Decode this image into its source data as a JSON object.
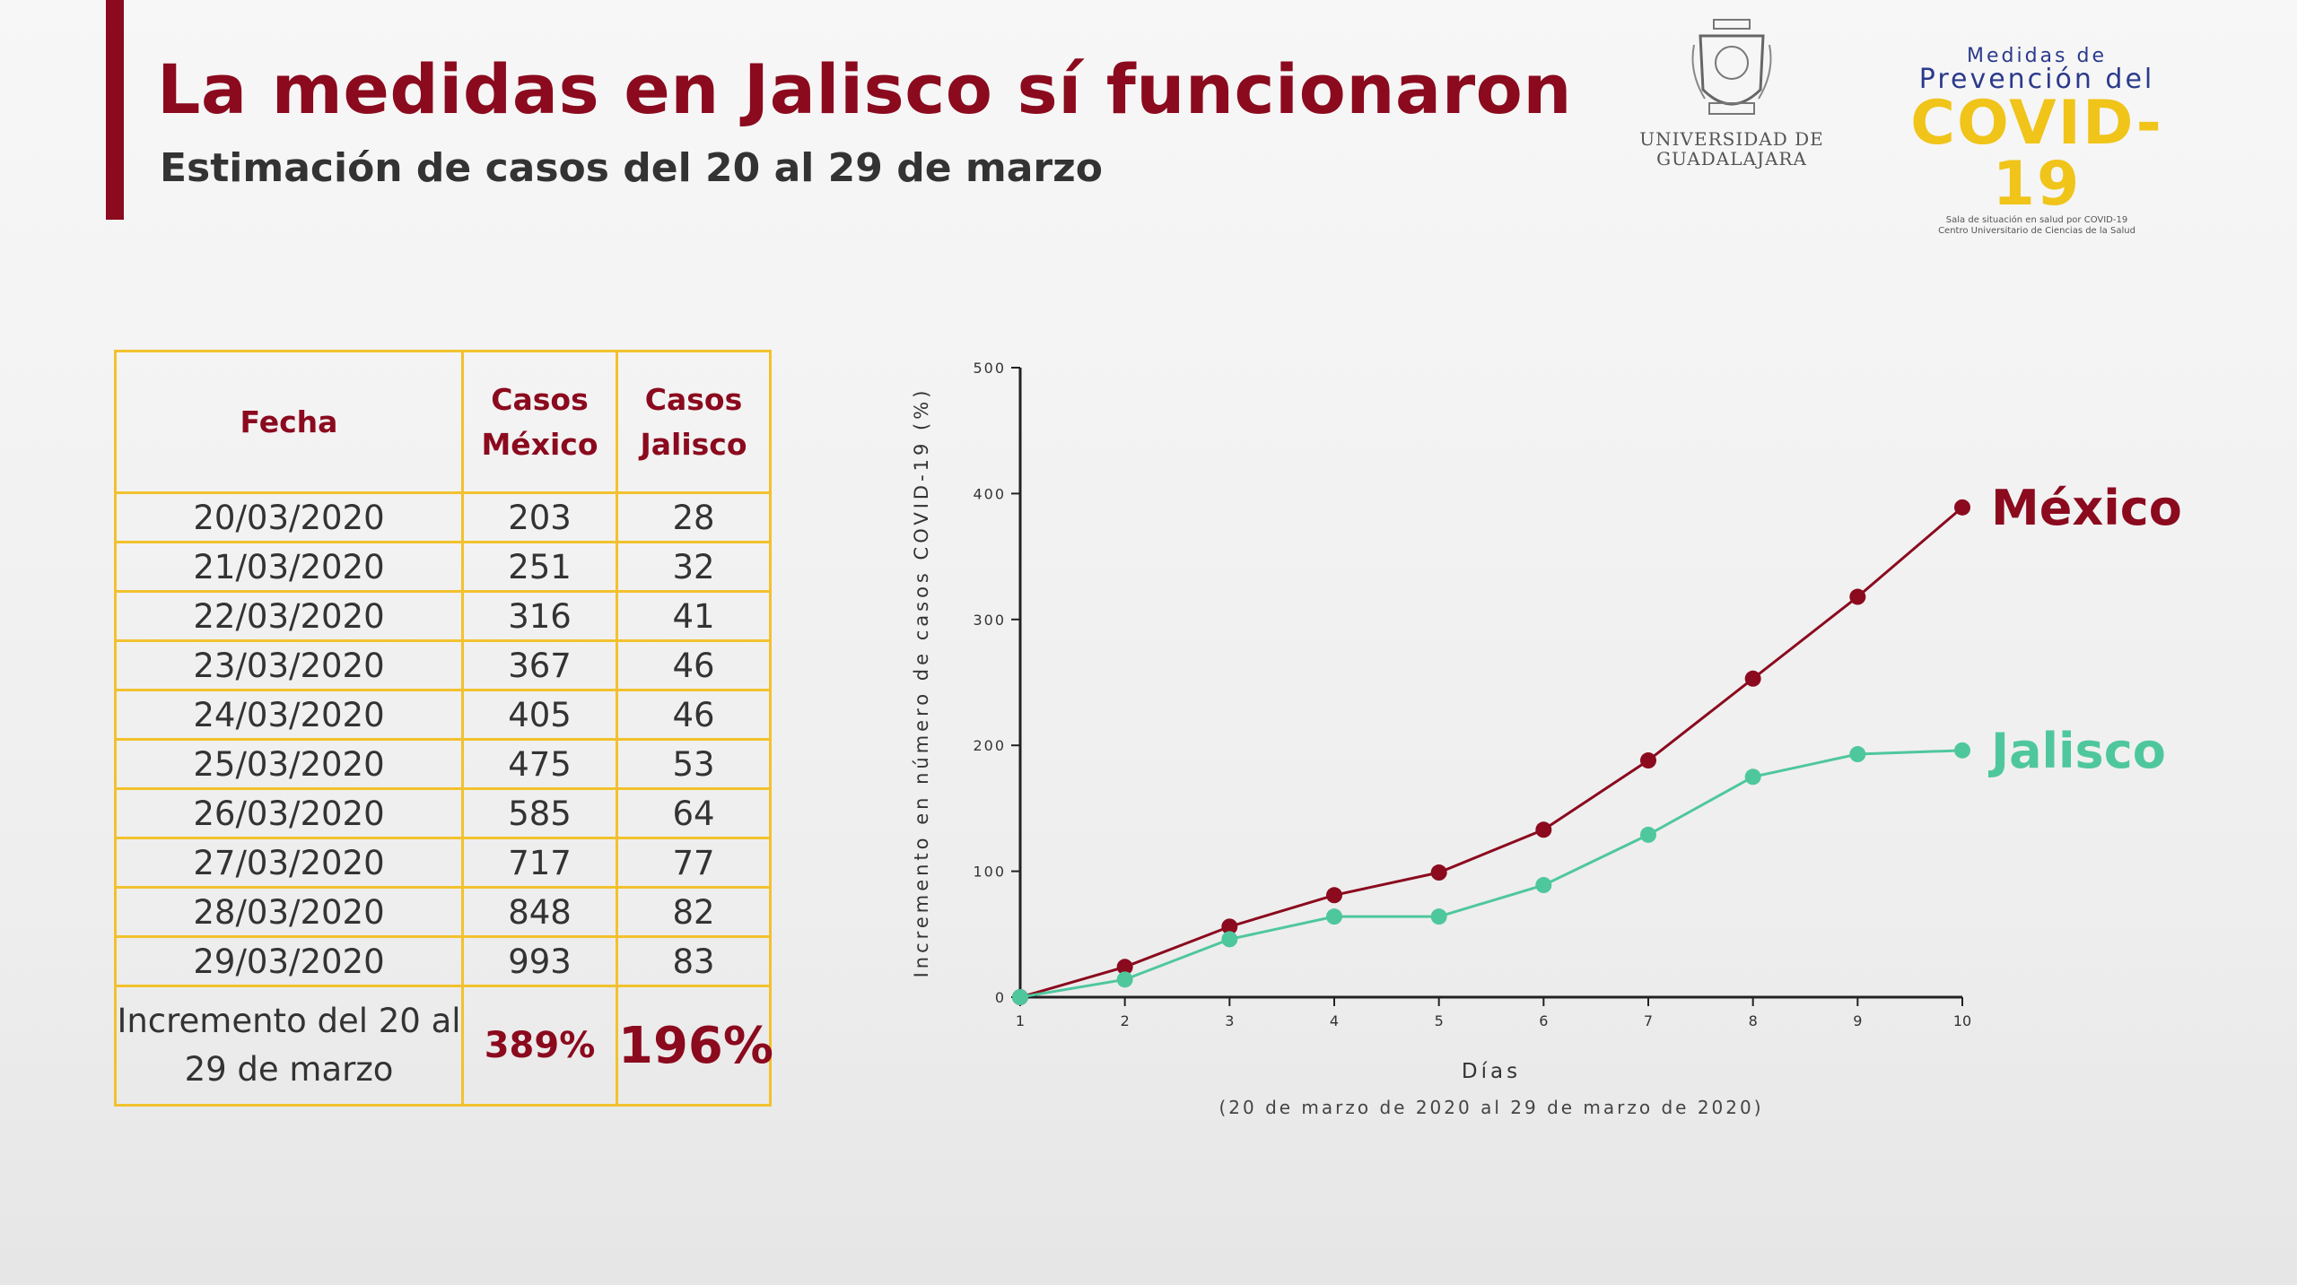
{
  "header": {
    "title": "La medidas en Jalisco sí funcionaron",
    "subtitle": "Estimación de casos del 20 al 29 de marzo"
  },
  "logos": {
    "udg_line1": "UNIVERSIDAD DE",
    "udg_line2": "GUADALAJARA",
    "covid_line1": "Medidas de",
    "covid_line2": "Prevención del",
    "covid_main": "COVID-19",
    "covid_small1": "Sala de situación en salud por COVID-19",
    "covid_small2": "Centro Universitario de Ciencias de la Salud"
  },
  "table": {
    "headers": {
      "fecha": "Fecha",
      "mexico_l1": "Casos",
      "mexico_l2": "México",
      "jalisco_l1": "Casos",
      "jalisco_l2": "Jalisco"
    },
    "rows": [
      {
        "fecha": "20/03/2020",
        "mexico": "203",
        "jalisco": "28"
      },
      {
        "fecha": "21/03/2020",
        "mexico": "251",
        "jalisco": "32"
      },
      {
        "fecha": "22/03/2020",
        "mexico": "316",
        "jalisco": "41"
      },
      {
        "fecha": "23/03/2020",
        "mexico": "367",
        "jalisco": "46"
      },
      {
        "fecha": "24/03/2020",
        "mexico": "405",
        "jalisco": "46"
      },
      {
        "fecha": "25/03/2020",
        "mexico": "475",
        "jalisco": "53"
      },
      {
        "fecha": "26/03/2020",
        "mexico": "585",
        "jalisco": "64"
      },
      {
        "fecha": "27/03/2020",
        "mexico": "717",
        "jalisco": "77"
      },
      {
        "fecha": "28/03/2020",
        "mexico": "848",
        "jalisco": "82"
      },
      {
        "fecha": "29/03/2020",
        "mexico": "993",
        "jalisco": "83"
      }
    ],
    "summary": {
      "label_l1": "Incremento del 20 al",
      "label_l2": "29 de marzo",
      "mexico": "389%",
      "jalisco": "196%"
    }
  },
  "chart_data": {
    "type": "line",
    "xlabel": "Días",
    "xlabel_note": "(20 de marzo de 2020 al 29 de marzo de 2020)",
    "ylabel": "Incremento en número de casos COVID-19 (%)",
    "x": [
      1,
      2,
      3,
      4,
      5,
      6,
      7,
      8,
      9,
      10
    ],
    "xlim": [
      1,
      10
    ],
    "ylim": [
      0,
      500
    ],
    "yticks": [
      0,
      100,
      200,
      300,
      400,
      500
    ],
    "grid": false,
    "series": [
      {
        "name": "México",
        "color": "#8b0a1e",
        "values": [
          0,
          24,
          56,
          81,
          99,
          133,
          188,
          253,
          318,
          389
        ]
      },
      {
        "name": "Jalisco",
        "color": "#4fc79d",
        "values": [
          0,
          14,
          46,
          64,
          64,
          89,
          129,
          175,
          193,
          196
        ]
      }
    ]
  }
}
